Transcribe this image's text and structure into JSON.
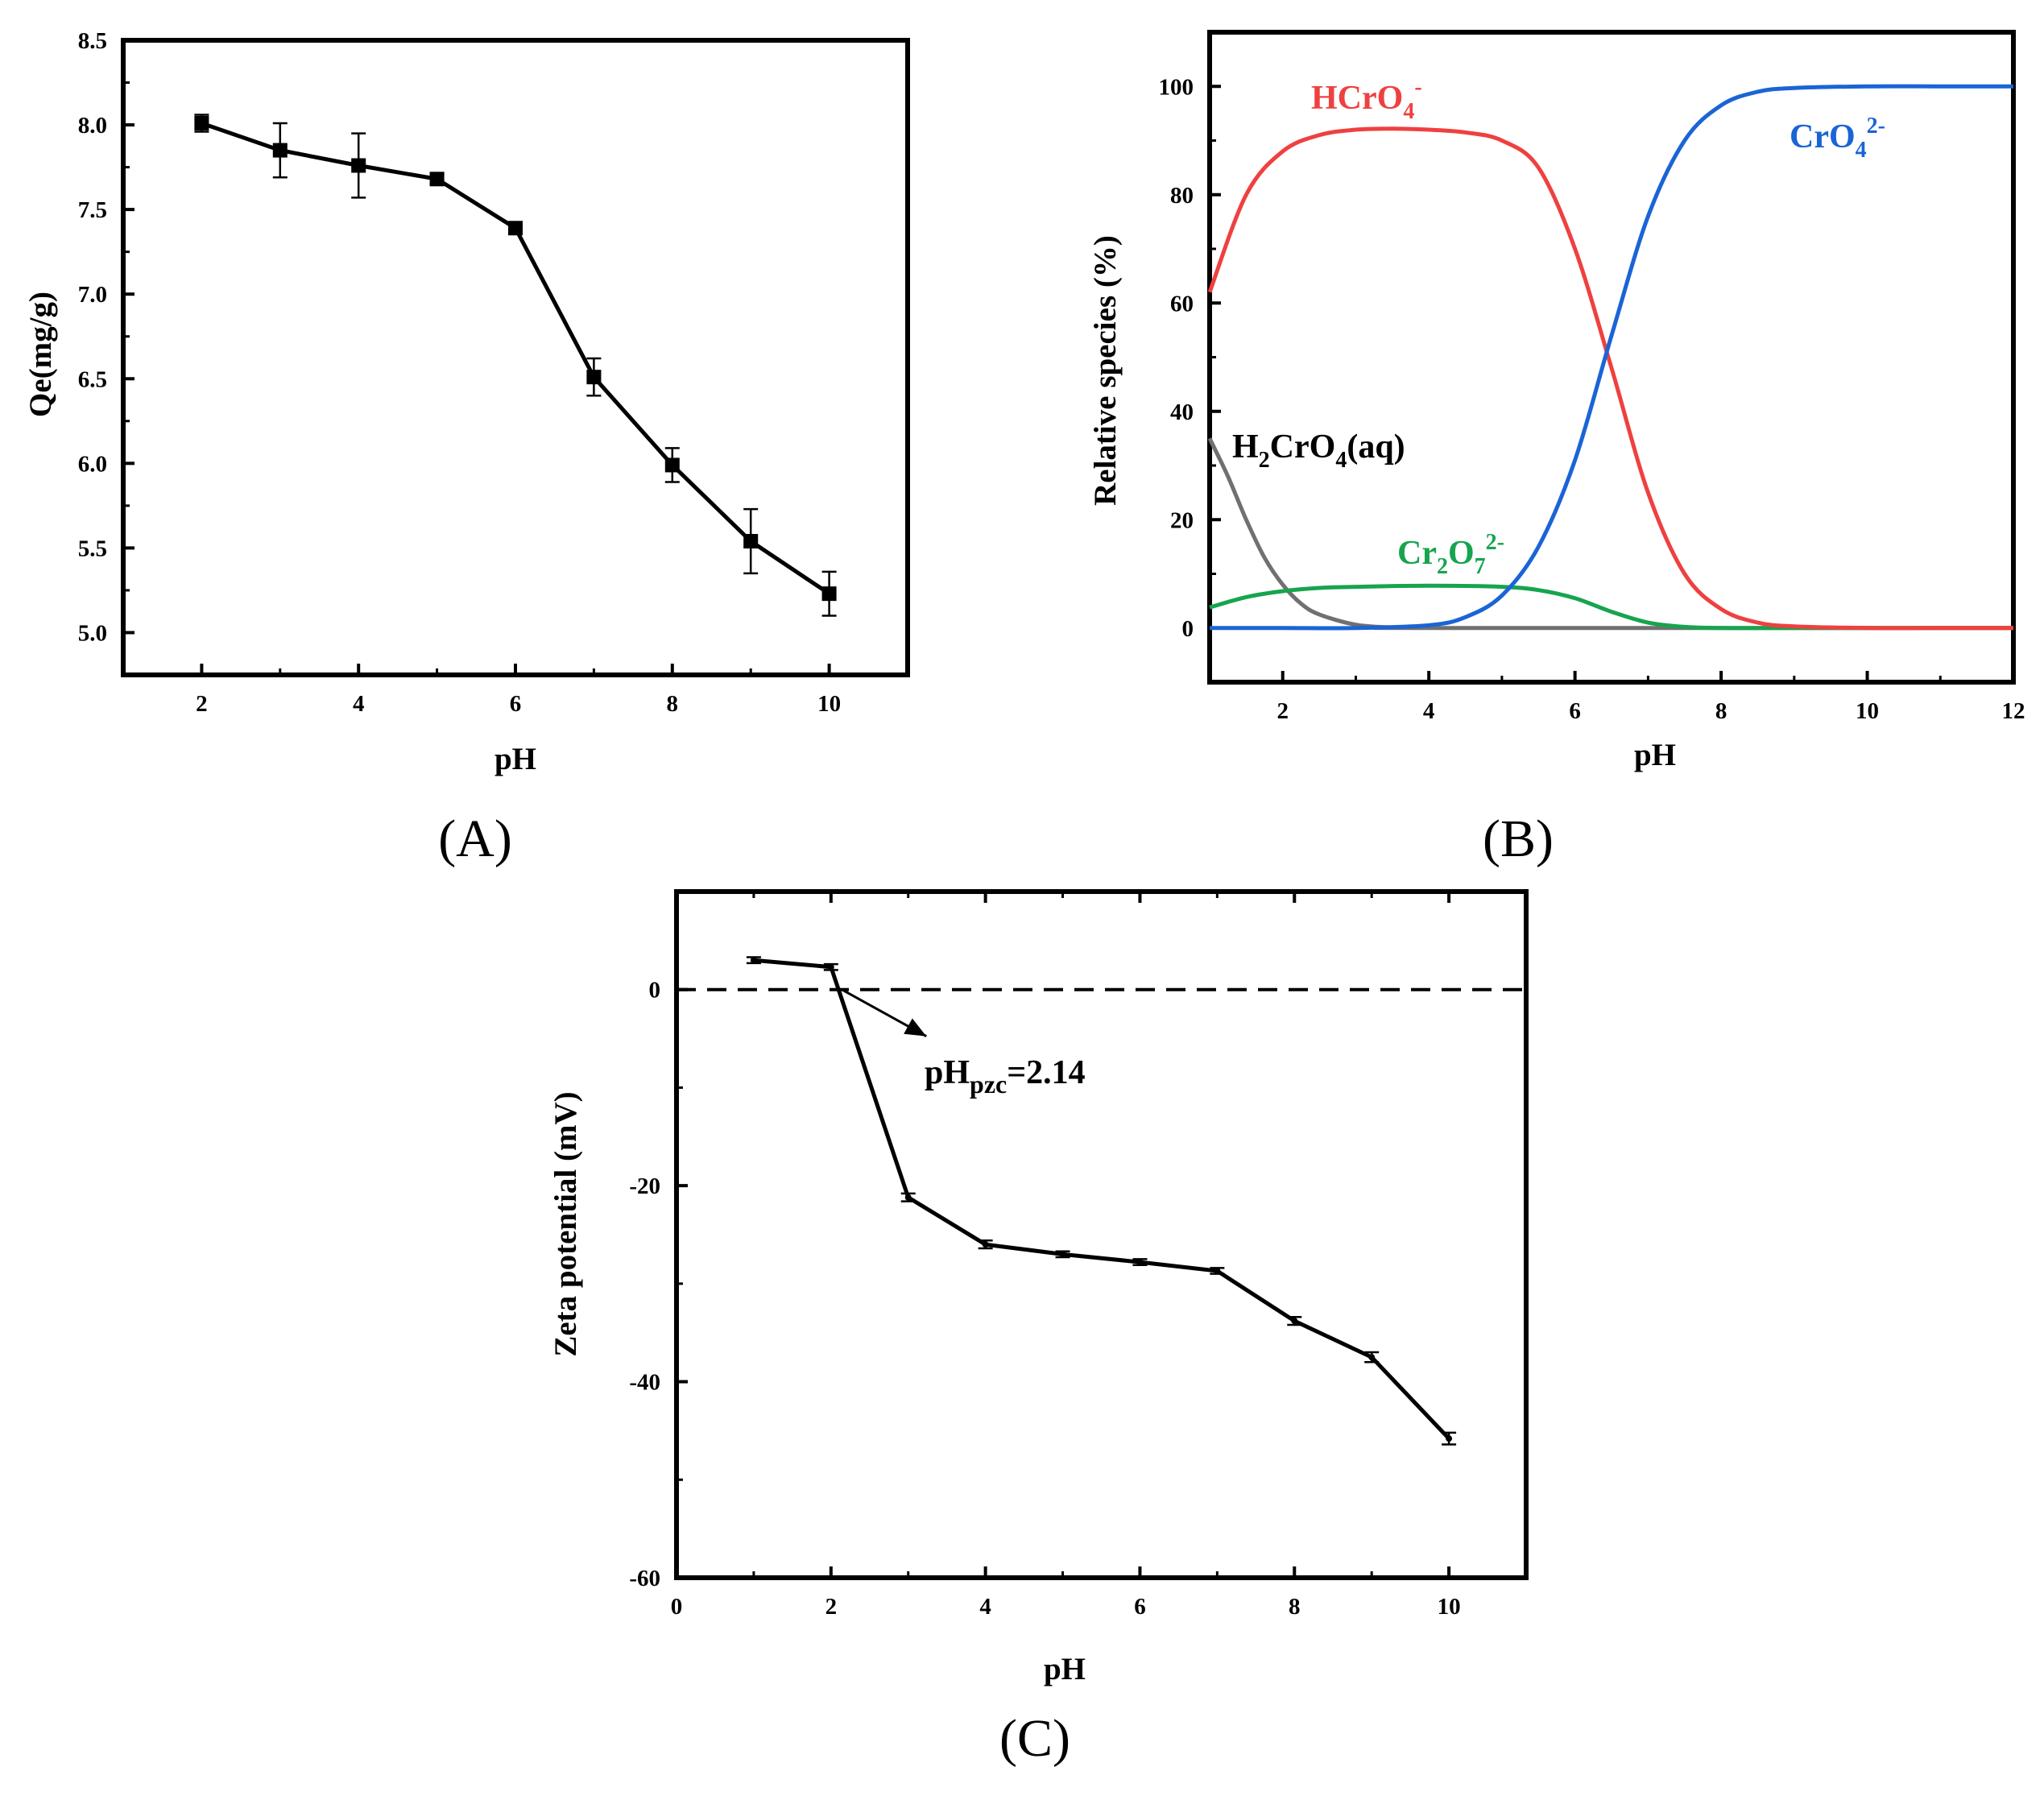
{
  "chart_data": [
    {
      "panel": "(A)",
      "type": "line",
      "xlabel": "pH",
      "ylabel": "Qe(mg/g)",
      "xlim": [
        1,
        11
      ],
      "ylim": [
        4.75,
        8.5
      ],
      "xticks": [
        2,
        4,
        6,
        8,
        10
      ],
      "xtick_labels": [
        "2",
        "4",
        "6",
        "8",
        "10"
      ],
      "yticks": [
        5.0,
        5.5,
        6.0,
        6.5,
        7.0,
        7.5,
        8.0,
        8.5
      ],
      "ytick_labels": [
        "5.0",
        "5.5",
        "6.0",
        "6.5",
        "7.0",
        "7.5",
        "8.0",
        "8.5"
      ],
      "series": [
        {
          "name": "Qe",
          "marker": "square",
          "color": "#000000",
          "x": [
            2,
            3,
            4,
            5,
            6,
            7,
            8,
            9,
            10
          ],
          "y": [
            8.01,
            7.85,
            7.76,
            7.68,
            7.39,
            6.51,
            5.99,
            5.54,
            5.23
          ],
          "error": [
            0.05,
            0.16,
            0.19,
            0.03,
            0.03,
            0.11,
            0.1,
            0.19,
            0.13
          ]
        }
      ]
    },
    {
      "panel": "(B)",
      "type": "line",
      "xlabel": "pH",
      "ylabel": "Relative species (%)",
      "xlim": [
        1,
        12
      ],
      "ylim": [
        -10,
        110
      ],
      "xticks": [
        2,
        4,
        6,
        8,
        10,
        12
      ],
      "xtick_labels": [
        "2",
        "4",
        "6",
        "8",
        "10",
        "12"
      ],
      "yticks": [
        0,
        20,
        40,
        60,
        80,
        100
      ],
      "ytick_labels": [
        "0",
        "20",
        "40",
        "60",
        "80",
        "100"
      ],
      "series": [
        {
          "name": "HCrO4-",
          "color": "#ef4040",
          "x": [
            1,
            1.5,
            2,
            2.5,
            3,
            3.5,
            4,
            4.5,
            5,
            5.5,
            6,
            6.5,
            7,
            7.5,
            8,
            8.5,
            9,
            10,
            11,
            12
          ],
          "y": [
            62,
            80,
            88,
            91,
            92,
            92.2,
            92,
            91.5,
            90,
            85,
            70,
            48,
            25,
            10,
            3.5,
            1,
            0.3,
            0,
            0,
            0
          ]
        },
        {
          "name": "CrO4 2-",
          "color": "#1a64d6",
          "x": [
            1,
            2,
            3,
            4,
            4.5,
            5,
            5.5,
            6,
            6.5,
            7,
            7.5,
            8,
            8.5,
            9,
            10,
            11,
            12
          ],
          "y": [
            0,
            0,
            0,
            0.5,
            2,
            6,
            15,
            31,
            54,
            76,
            90,
            96.5,
            99,
            99.7,
            100,
            100,
            100
          ]
        },
        {
          "name": "H2CrO4(aq)",
          "color": "#707070",
          "x": [
            1,
            1.25,
            1.5,
            1.75,
            2,
            2.25,
            2.5,
            3,
            3.5,
            4,
            12
          ],
          "y": [
            35,
            28,
            20,
            13,
            8,
            4.5,
            2.5,
            0.6,
            0.1,
            0,
            0
          ]
        },
        {
          "name": "Cr2O7 2-",
          "color": "#17a44e",
          "x": [
            1,
            1.5,
            2,
            2.5,
            3,
            4,
            5,
            5.5,
            6,
            6.5,
            7,
            7.5,
            8,
            9,
            12
          ],
          "y": [
            3.8,
            5.7,
            6.8,
            7.4,
            7.6,
            7.8,
            7.6,
            7.0,
            5.5,
            3,
            1,
            0.2,
            0,
            0,
            0
          ]
        }
      ],
      "labels": {
        "hcro4_base": "HCrO",
        "hcro4_sub": "4",
        "hcro4_sup": "-",
        "cro4_base": "CrO",
        "cro4_sub": "4",
        "cro4_sup": "2-",
        "h2cro4_a": "H",
        "h2cro4_sub1": "2",
        "h2cro4_b": "CrO",
        "h2cro4_sub2": "4",
        "h2cro4_c": "(aq)",
        "cr2o7_a": "Cr",
        "cr2o7_sub1": "2",
        "cr2o7_b": "O",
        "cr2o7_sub2": "7",
        "cr2o7_sup": "2-"
      }
    },
    {
      "panel": "(C)",
      "type": "line",
      "xlabel": "pH",
      "ylabel": "Zeta potential (mV)",
      "xlim": [
        0,
        11
      ],
      "ylim": [
        -60,
        10
      ],
      "xticks": [
        0,
        2,
        4,
        6,
        8,
        10
      ],
      "xtick_labels": [
        "0",
        "2",
        "4",
        "6",
        "8",
        "10"
      ],
      "yticks": [
        -60,
        -40,
        -20,
        0
      ],
      "ytick_labels": [
        "-60",
        "-40",
        "-20",
        "0"
      ],
      "zero_line": 0,
      "annotation": {
        "text_main": "pH",
        "text_sub": "pzc",
        "text_value": "=2.14",
        "x": 2.14,
        "y": 0
      },
      "series": [
        {
          "name": "Zeta potential",
          "color": "#000000",
          "x": [
            1,
            2,
            3,
            4,
            5,
            6,
            7,
            8,
            9,
            10
          ],
          "y": [
            3.0,
            2.3,
            -21.2,
            -26.0,
            -27.0,
            -27.8,
            -28.7,
            -33.8,
            -37.5,
            -45.8
          ],
          "error": [
            0.3,
            0.3,
            0.4,
            0.4,
            0.3,
            0.3,
            0.3,
            0.4,
            0.5,
            0.6
          ]
        }
      ]
    }
  ]
}
